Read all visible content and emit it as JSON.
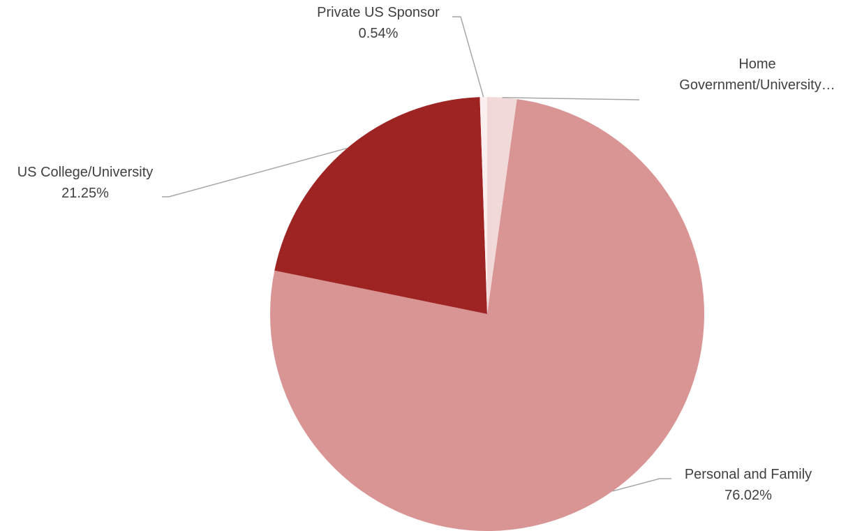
{
  "chart_data": {
    "type": "pie",
    "slices": [
      {
        "name": "Home Government/University…",
        "name_lines": [
          "Home",
          "Government/University…"
        ],
        "value": 2.19,
        "label": "",
        "color": "#f2d9d9"
      },
      {
        "name": "Personal and Family",
        "name_lines": [
          "Personal and Family"
        ],
        "value": 76.02,
        "label": "76.02%",
        "color": "#d99594"
      },
      {
        "name": "US College/University",
        "name_lines": [
          "US College/University"
        ],
        "value": 21.25,
        "label": "21.25%",
        "color": "#9e2323"
      },
      {
        "name": "Private US Sponsor",
        "name_lines": [
          "Private US Sponsor"
        ],
        "value": 0.54,
        "label": "0.54%",
        "color": "#fbeeee"
      }
    ],
    "start_angle": "top",
    "direction": "clockwise",
    "legend": "none"
  }
}
